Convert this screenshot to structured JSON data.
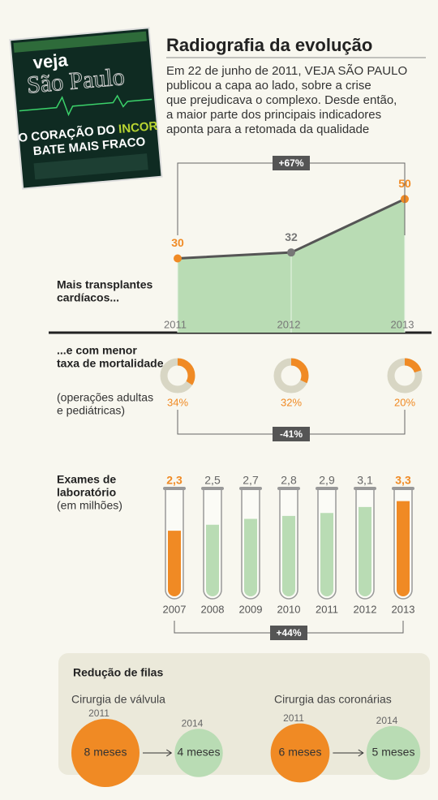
{
  "header": {
    "title": "Radiografia da evolução",
    "text_lines": [
      "Em 22 de junho de 2011, VEJA SÃO PAULO",
      "publicou a capa ao lado, sobre a crise",
      "que prejudicava o complexo. Desde então,",
      "a maior parte dos principais indicadores",
      "aponta para a retomada da qualidade"
    ]
  },
  "cover": {
    "logo": "veja",
    "city": "São Paulo",
    "headline_1": "O CORAÇÃO DO",
    "headline_highlight": "INCOR",
    "headline_2": "BATE MAIS FRACO"
  },
  "chart_data": [
    {
      "type": "area",
      "title": [
        "Mais transplantes",
        "cardíacos..."
      ],
      "x": [
        2011,
        2012,
        2013
      ],
      "values": [
        30,
        32,
        50
      ],
      "xlim": [
        2011,
        2013
      ],
      "ylim": [
        5,
        55
      ],
      "color": "#b9dcb4",
      "line_color": "#555555",
      "point_colors": [
        "#f08a24",
        "#777777",
        "#f08a24"
      ],
      "change": "+67%"
    },
    {
      "type": "donut",
      "title": [
        "...e com menor",
        "taxa de mortalidade"
      ],
      "subtitle": [
        "(operações adultas",
        "e pediátricas)"
      ],
      "categories": [
        "2011",
        "2012",
        "2013"
      ],
      "values": [
        34,
        32,
        20
      ],
      "value_labels": [
        "34%",
        "32%",
        "20%"
      ],
      "color": "#f08a24",
      "track_color": "#d8d6c4",
      "change": "-41%"
    },
    {
      "type": "tube",
      "title": [
        "Exames de",
        "laboratório"
      ],
      "subtitle": "(em milhões)",
      "categories": [
        "2007",
        "2008",
        "2009",
        "2010",
        "2011",
        "2012",
        "2013"
      ],
      "values": [
        2.3,
        2.5,
        2.7,
        2.8,
        2.9,
        3.1,
        3.3
      ],
      "value_labels": [
        "2,3",
        "2,5",
        "2,7",
        "2,8",
        "2,9",
        "3,1",
        "3,3"
      ],
      "ylim": [
        0,
        3.7
      ],
      "color": "#b9dcb4",
      "colors": [
        "#f08a24",
        "#b9dcb4",
        "#b9dcb4",
        "#b9dcb4",
        "#b9dcb4",
        "#b9dcb4",
        "#f08a24"
      ],
      "change": "+44%"
    },
    {
      "type": "bubble",
      "title": "Redução de filas",
      "categories": [
        "2011",
        "2014"
      ],
      "colors": [
        "#f08a24",
        "#b9dcb4"
      ],
      "series": [
        {
          "name": "Cirurgia de válvula",
          "values": [
            8,
            4
          ],
          "value_labels": [
            "8 meses",
            "4 meses"
          ]
        },
        {
          "name": "Cirurgia das coronárias",
          "values": [
            6,
            5
          ],
          "value_labels": [
            "6 meses",
            "5 meses"
          ]
        }
      ]
    }
  ]
}
